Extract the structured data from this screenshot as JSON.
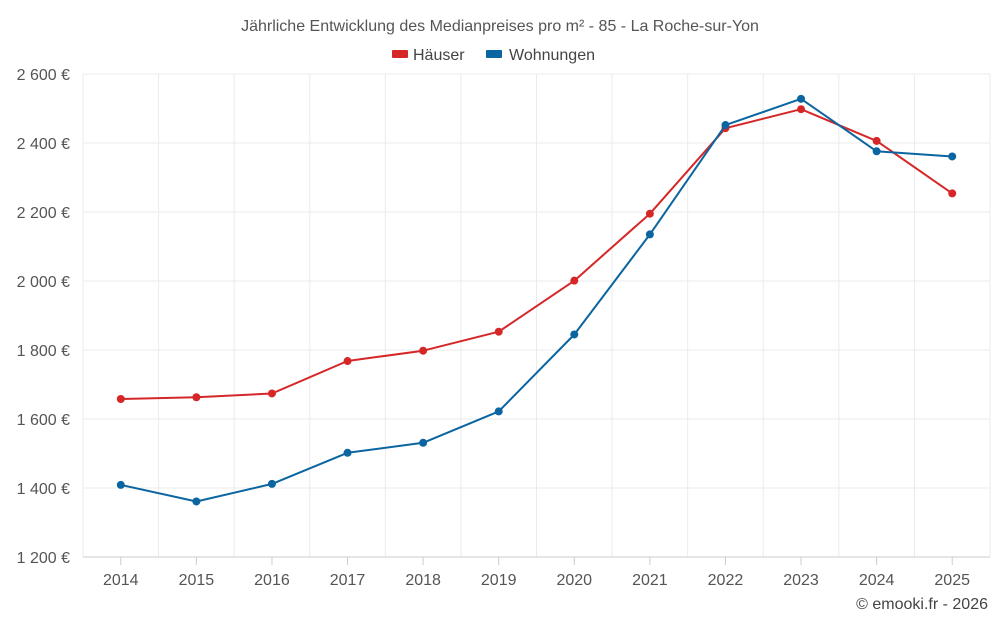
{
  "chart_data": {
    "type": "line",
    "title": "Jährliche Entwicklung des Medianpreises pro m² - 85 - La Roche-sur-Yon",
    "categories": [
      "2014",
      "2015",
      "2016",
      "2017",
      "2018",
      "2019",
      "2020",
      "2021",
      "2022",
      "2023",
      "2024",
      "2025"
    ],
    "series": [
      {
        "name": "Häuser",
        "color": "#d62728",
        "values": [
          1658,
          1663,
          1674,
          1768,
          1798,
          1853,
          2001,
          2195,
          2443,
          2498,
          2406,
          2254
        ]
      },
      {
        "name": "Wohnungen",
        "color": "#0a65a0",
        "values": [
          1409,
          1361,
          1412,
          1502,
          1531,
          1622,
          1845,
          2135,
          2452,
          2528,
          2376,
          2361
        ]
      }
    ],
    "ylim": [
      1200,
      2600
    ],
    "yticks": [
      1200,
      1400,
      1600,
      1800,
      2000,
      2200,
      2400,
      2600
    ],
    "ytick_labels": [
      "1 200 €",
      "1 400 €",
      "1 600 €",
      "1 800 €",
      "2 000 €",
      "2 200 €",
      "2 400 €",
      "2 600 €"
    ],
    "legend_position": "top-center",
    "grid": true,
    "xlabel": "",
    "ylabel": ""
  },
  "credit": "© emooki.fr - 2026"
}
